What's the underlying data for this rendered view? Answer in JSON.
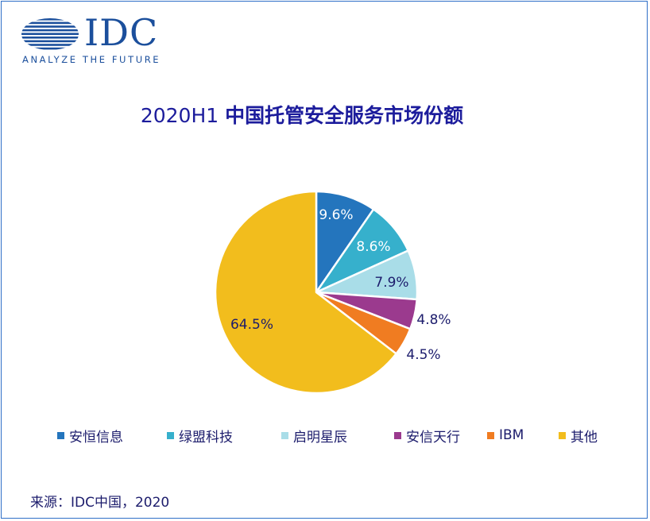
{
  "logo": {
    "wordmark": "IDC",
    "tagline": "ANALYZE THE FUTURE",
    "color": "#1b4f9c"
  },
  "title": {
    "prefix": "2020H1 ",
    "main": "中国托管安全服务市场份额"
  },
  "chart_data": {
    "type": "pie",
    "title": "2020H1 中国托管安全服务市场份额",
    "start_angle_deg": 0,
    "direction": "clockwise",
    "legend_position": "bottom",
    "slices": [
      {
        "name": "安恒信息",
        "value": 9.6,
        "label": "9.6%",
        "color": "#2475bd",
        "label_color": "#ffffff"
      },
      {
        "name": "绿盟科技",
        "value": 8.6,
        "label": "8.6%",
        "color": "#36b0cc",
        "label_color": "#ffffff"
      },
      {
        "name": "启明星辰",
        "value": 7.9,
        "label": "7.9%",
        "color": "#a9dde8",
        "label_color": "#1c1c6c"
      },
      {
        "name": "安信天行",
        "value": 4.8,
        "label": "4.8%",
        "color": "#9b3a8e",
        "label_color": "#1c1c6c"
      },
      {
        "name": "IBM",
        "value": 4.5,
        "label": "4.5%",
        "color": "#f07c21",
        "label_color": "#1c1c6c"
      },
      {
        "name": "其他",
        "value": 64.5,
        "label": "64.5%",
        "color": "#f2bd1d",
        "label_color": "#1c1c6c"
      }
    ]
  },
  "source": "来源：IDC中国，2020"
}
